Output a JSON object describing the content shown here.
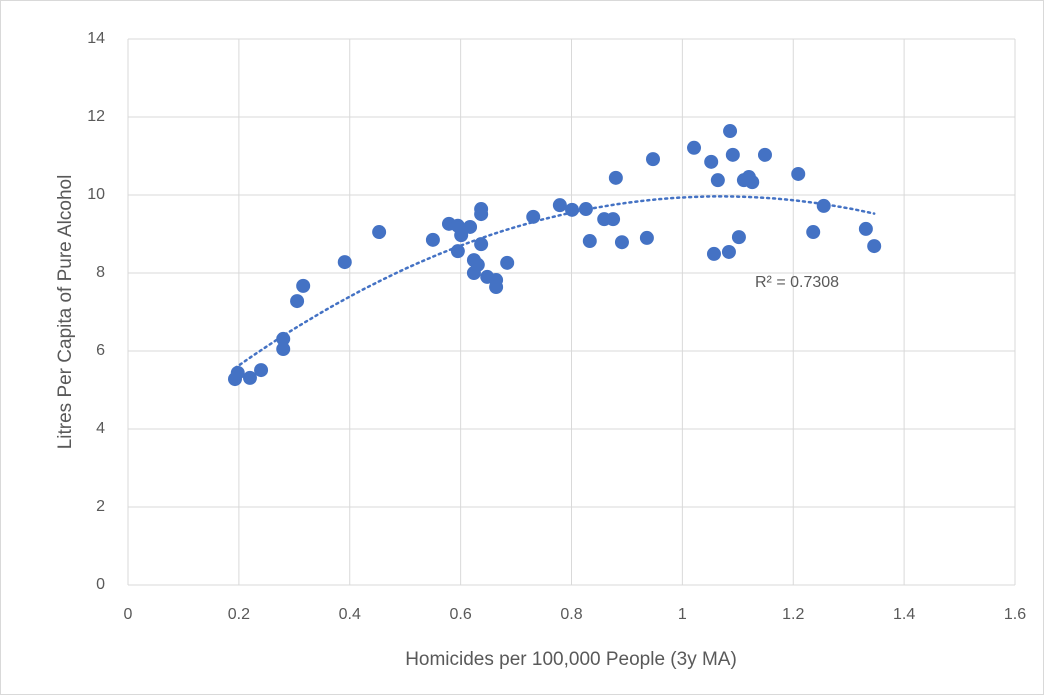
{
  "chart_data": {
    "type": "scatter",
    "x_label": "Homicides per 100,000 People (3y MA)",
    "y_label": "Litres Per Capita of Pure Alcohol",
    "color": "#4472c4",
    "x": [
      0.193,
      0.198,
      0.22,
      0.24,
      0.28,
      0.28,
      0.305,
      0.316,
      0.391,
      0.453,
      0.55,
      0.579,
      0.595,
      0.595,
      0.601,
      0.617,
      0.624,
      0.624,
      0.631,
      0.637,
      0.637,
      0.637,
      0.648,
      0.664,
      0.664,
      0.684,
      0.731,
      0.779,
      0.801,
      0.826,
      0.833,
      0.859,
      0.875,
      0.88,
      0.891,
      0.936,
      0.947,
      1.021,
      1.052,
      1.057,
      1.064,
      1.084,
      1.086,
      1.091,
      1.102,
      1.111,
      1.12,
      1.126,
      1.149,
      1.209,
      1.236,
      1.255,
      1.331,
      1.346
    ],
    "values": [
      5.28,
      5.44,
      5.31,
      5.51,
      6.05,
      6.31,
      7.28,
      7.67,
      8.28,
      9.05,
      8.85,
      9.26,
      9.21,
      8.56,
      8.97,
      9.18,
      8.33,
      8.0,
      8.21,
      8.74,
      9.64,
      9.51,
      7.9,
      7.82,
      7.64,
      8.26,
      9.44,
      9.74,
      9.62,
      9.64,
      8.82,
      9.38,
      9.38,
      10.44,
      8.79,
      8.9,
      10.92,
      11.21,
      10.85,
      8.49,
      10.38,
      8.54,
      11.64,
      11.03,
      8.92,
      10.38,
      10.46,
      10.33,
      11.03,
      10.54,
      9.05,
      9.72,
      9.13,
      8.69
    ],
    "trendline": {
      "type": "polynomial",
      "order": 2,
      "label": "R² = 0.7308"
    },
    "xlim": [
      0,
      1.6
    ],
    "xticks": [
      0,
      0.2,
      0.4,
      0.6,
      0.8,
      1,
      1.2,
      1.4,
      1.6
    ],
    "ylim": [
      0,
      14
    ],
    "yticks": [
      0,
      2,
      4,
      6,
      8,
      10,
      12,
      14
    ],
    "grid": true
  }
}
